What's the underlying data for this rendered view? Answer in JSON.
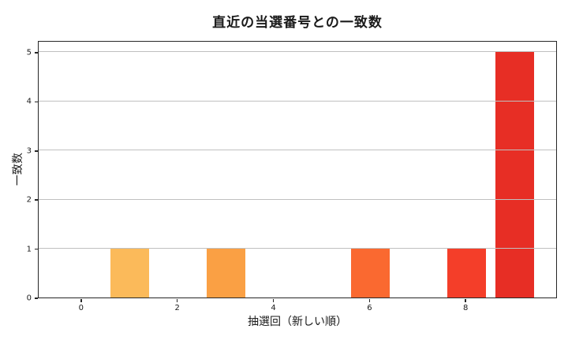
{
  "chart_data": {
    "type": "bar",
    "title": "直近の当選番号との一致数",
    "xlabel": "抽選回（新しい順）",
    "ylabel": "一致数",
    "x": [
      0,
      1,
      2,
      3,
      4,
      5,
      6,
      7,
      8,
      9
    ],
    "values": [
      0,
      1,
      0,
      1,
      0,
      0,
      1,
      0,
      1,
      5
    ],
    "colors": [
      "#fcc666",
      "#fbba5a",
      "#faad4f",
      "#faa044",
      "#fa8c3b",
      "#fa7b35",
      "#fa6930",
      "#f7512c",
      "#f43e29",
      "#e72e25"
    ],
    "bar_width_units": 0.8,
    "xticks": [
      0,
      2,
      4,
      6,
      8
    ],
    "yticks": [
      0,
      1,
      2,
      3,
      4,
      5
    ],
    "xlim": [
      -0.9,
      9.9
    ],
    "ylim": [
      0,
      5.24
    ],
    "grid": "horizontal-above-bars",
    "gridline_color": "#c0c0c0",
    "spine_color": "#262626",
    "background_color": "#ffffff",
    "legend": null
  }
}
